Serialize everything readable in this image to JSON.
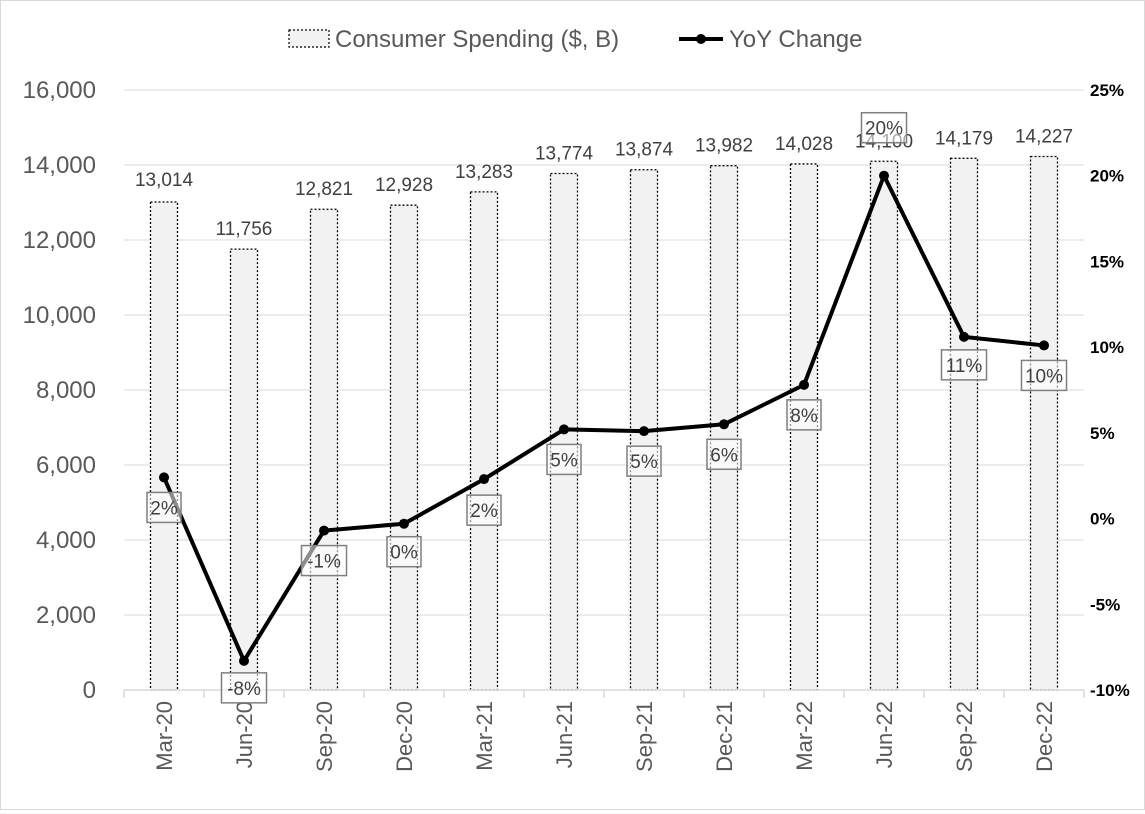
{
  "chart_data": {
    "type": "bar+line",
    "categories": [
      "Mar-20",
      "Jun-20",
      "Sep-20",
      "Dec-20",
      "Mar-21",
      "Jun-21",
      "Sep-21",
      "Dec-21",
      "Mar-22",
      "Jun-22",
      "Sep-22",
      "Dec-22"
    ],
    "series": [
      {
        "name": "Consumer Spending ($, B)",
        "type": "bar",
        "axis": "left",
        "values": [
          13014,
          11756,
          12821,
          12928,
          13283,
          13774,
          13874,
          13982,
          14028,
          14100,
          14179,
          14227
        ],
        "labels": [
          "13,014",
          "11,756",
          "12,821",
          "12,928",
          "13,283",
          "13,774",
          "13,874",
          "13,982",
          "14,028",
          "14,100",
          "14,179",
          "14,227"
        ]
      },
      {
        "name": "YoY Change",
        "type": "line",
        "axis": "right",
        "values": [
          2.4,
          -8.3,
          -0.7,
          -0.3,
          2.3,
          5.2,
          5.1,
          5.5,
          7.8,
          20.0,
          10.6,
          10.1
        ],
        "labels": [
          "2%",
          "-8%",
          "-1%",
          "0%",
          "2%",
          "5%",
          "5%",
          "6%",
          "8%",
          "20%",
          "11%",
          "10%"
        ]
      }
    ],
    "y_left": {
      "min": 0,
      "max": 16000,
      "ticks": [
        "0",
        "2,000",
        "4,000",
        "6,000",
        "8,000",
        "10,000",
        "12,000",
        "14,000",
        "16,000"
      ]
    },
    "y_right": {
      "min": -10,
      "max": 25,
      "ticks": [
        "-10%",
        "-5%",
        "0%",
        "5%",
        "10%",
        "15%",
        "20%",
        "25%"
      ]
    },
    "grid": true,
    "legend": "top-center",
    "colors": {
      "bar_fill": "#f2f2f2",
      "bar_border": "#000000",
      "line": "#000000",
      "grid": "#d9d9d9",
      "label_box_border": "#7f7f7f"
    }
  }
}
